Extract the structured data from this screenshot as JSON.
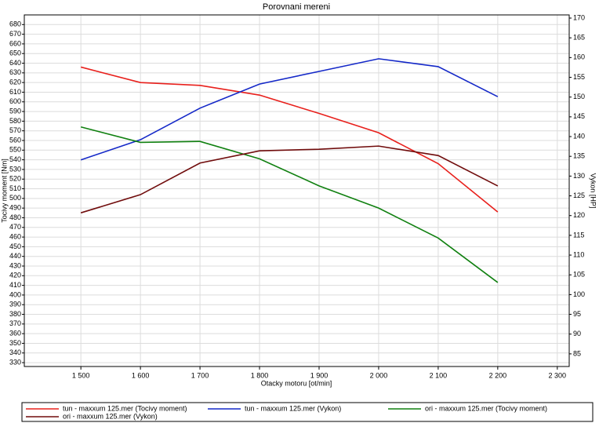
{
  "chart_data": {
    "type": "line",
    "title": "Porovnani mereni",
    "x_label": "Otacky motoru [ot/min]",
    "y_label": "Tocivy moment [Nm]",
    "y2_label": "Vykon [HP]",
    "x": [
      1500,
      1600,
      1700,
      1800,
      1900,
      2000,
      2100,
      2200
    ],
    "xlim": [
      1405,
      2320
    ],
    "xticks": [
      {
        "value": 1500,
        "label": "1 500"
      },
      {
        "value": 1600,
        "label": "1 600"
      },
      {
        "value": 1700,
        "label": "1 700"
      },
      {
        "value": 1800,
        "label": "1 800"
      },
      {
        "value": 1900,
        "label": "1 900"
      },
      {
        "value": 2000,
        "label": "2 000"
      },
      {
        "value": 2100,
        "label": "2 100"
      },
      {
        "value": 2200,
        "label": "2 200"
      },
      {
        "value": 2300,
        "label": "2 300"
      }
    ],
    "ylim": [
      326,
      690
    ],
    "yticks": [
      330,
      340,
      350,
      360,
      370,
      380,
      390,
      400,
      410,
      420,
      430,
      440,
      450,
      460,
      470,
      480,
      490,
      500,
      510,
      520,
      530,
      540,
      550,
      560,
      570,
      580,
      590,
      600,
      610,
      620,
      630,
      640,
      650,
      660,
      670,
      680
    ],
    "y2lim": [
      81.8,
      170.8
    ],
    "y2ticks": [
      85,
      90,
      95,
      100,
      105,
      110,
      115,
      120,
      125,
      130,
      135,
      140,
      145,
      150,
      155,
      160,
      165,
      170
    ],
    "grid": true,
    "series": [
      {
        "name": "tun - maxxum 125.mer  (Tocivy moment)",
        "color": "#e8201c",
        "values": [
          636,
          620,
          617,
          607,
          588,
          568,
          536,
          486
        ]
      },
      {
        "name": "tun - maxxum 125.mer  (Vykon)",
        "color": "#1428c8",
        "axis": "y2",
        "values": [
          134.1,
          139.2,
          147.2,
          153.3,
          156.5,
          159.7,
          157.7,
          150.1
        ]
      },
      {
        "name": "ori - maxxum 125.mer  (Tocivy moment)",
        "color": "#108010",
        "values": [
          574,
          558,
          559,
          541,
          513,
          490,
          459,
          413
        ]
      },
      {
        "name": "ori - maxxum 125.mer  (Vykon)",
        "color": "#700c0c",
        "axis": "y2",
        "values": [
          120.7,
          125.3,
          133.3,
          136.4,
          136.8,
          137.6,
          135.2,
          127.5
        ]
      }
    ]
  }
}
